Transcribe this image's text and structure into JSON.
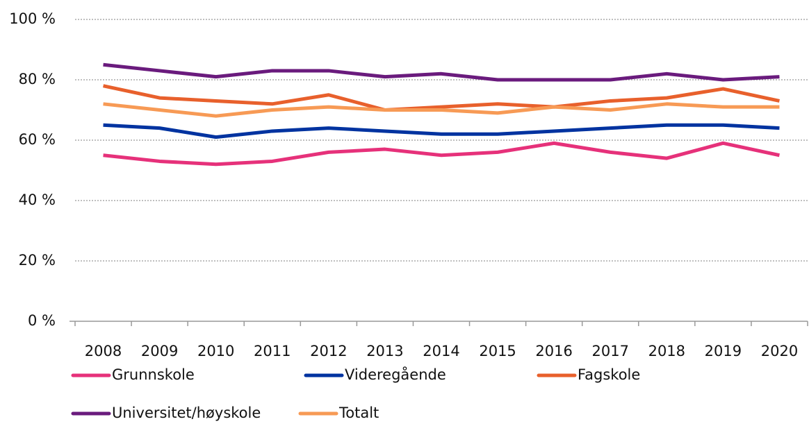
{
  "chart_data": {
    "type": "line",
    "categories": [
      "2008",
      "2009",
      "2010",
      "2011",
      "2012",
      "2013",
      "2014",
      "2015",
      "2016",
      "2017",
      "2018",
      "2019",
      "2020"
    ],
    "series": [
      {
        "name": "Grunnskole",
        "color": "#e6317a",
        "values": [
          55,
          53,
          52,
          53,
          56,
          57,
          55,
          56,
          59,
          56,
          54,
          59,
          55
        ]
      },
      {
        "name": "Videregående",
        "color": "#0033a0",
        "values": [
          65,
          64,
          61,
          63,
          64,
          63,
          62,
          62,
          63,
          64,
          65,
          65,
          64
        ]
      },
      {
        "name": "Fagskole",
        "color": "#e8602c",
        "values": [
          78,
          74,
          73,
          72,
          75,
          70,
          71,
          72,
          71,
          73,
          74,
          77,
          73
        ]
      },
      {
        "name": "Universitet/høyskole",
        "color": "#6a1b7d",
        "values": [
          85,
          83,
          81,
          83,
          83,
          81,
          82,
          80,
          80,
          80,
          82,
          80,
          81
        ]
      },
      {
        "name": "Totalt",
        "color": "#f79a55",
        "values": [
          72,
          70,
          68,
          70,
          71,
          70,
          70,
          69,
          71,
          70,
          72,
          71,
          71
        ]
      }
    ],
    "ylim": [
      0,
      100
    ],
    "yticks": [
      {
        "value": 0,
        "label": "0 %"
      },
      {
        "value": 20,
        "label": "20 %"
      },
      {
        "value": 40,
        "label": "40 %"
      },
      {
        "value": 60,
        "label": "60 %"
      },
      {
        "value": 80,
        "label": "80 %"
      },
      {
        "value": 100,
        "label": "100 %"
      }
    ],
    "grid": true
  }
}
